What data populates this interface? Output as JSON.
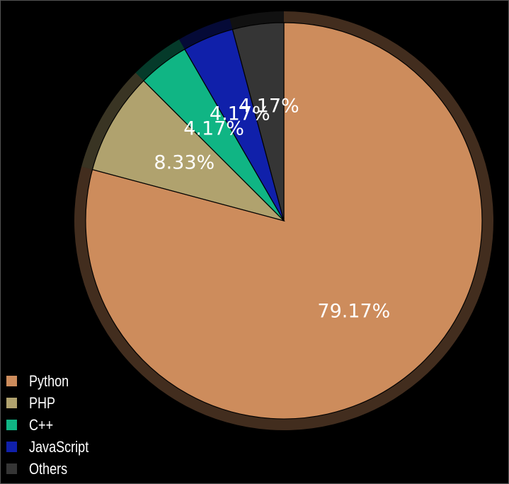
{
  "chart_data": {
    "type": "pie",
    "title": "",
    "start_angle": "12 o'clock, clockwise",
    "legend_position": "bottom-left",
    "slices": [
      {
        "label": "Python",
        "value": 79.17,
        "display": "79.17%",
        "color": "#cd8c5c"
      },
      {
        "label": "PHP",
        "value": 8.33,
        "display": "8.33%",
        "color": "#b0a26e"
      },
      {
        "label": "C++",
        "value": 4.17,
        "display": "4.17%",
        "color": "#10b584"
      },
      {
        "label": "JavaScript",
        "value": 4.17,
        "display": "4.17%",
        "color": "#1020aa"
      },
      {
        "label": "Others",
        "value": 4.17,
        "display": "4.17%",
        "color": "#353535"
      }
    ]
  },
  "colors": {
    "background": "#000000",
    "text": "#ffffff",
    "slice_border": "#000000"
  }
}
